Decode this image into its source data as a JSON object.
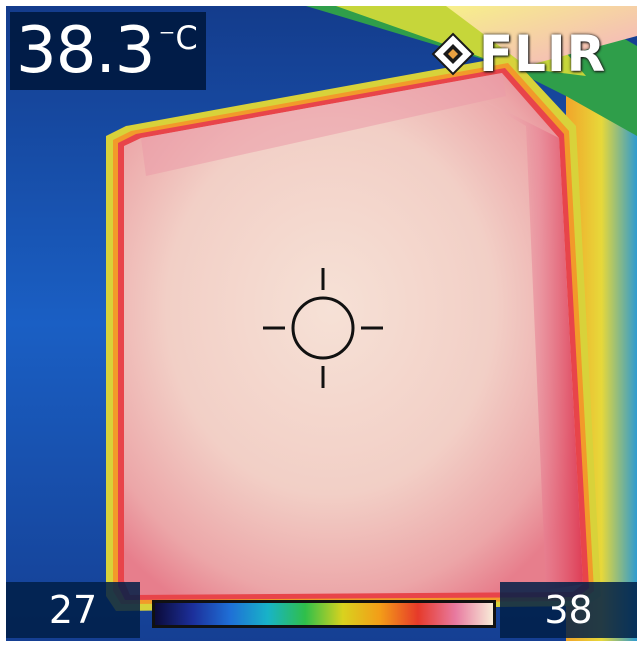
{
  "readout": {
    "temperature": "38.3",
    "unit": "⁻C"
  },
  "brand": {
    "name": "FLIR",
    "logo_icon": "flir-diamond-logo-icon"
  },
  "scale": {
    "min": "27",
    "max": "38",
    "palette": [
      "#0b0b3a",
      "#1c2f9a",
      "#1f6fd6",
      "#18b3c8",
      "#2fbf4a",
      "#d9d21e",
      "#f39c18",
      "#e63a2a",
      "#e87aa0",
      "#f8ecd8"
    ]
  },
  "center_spot": {
    "icon": "crosshair-spotmeter-icon"
  }
}
